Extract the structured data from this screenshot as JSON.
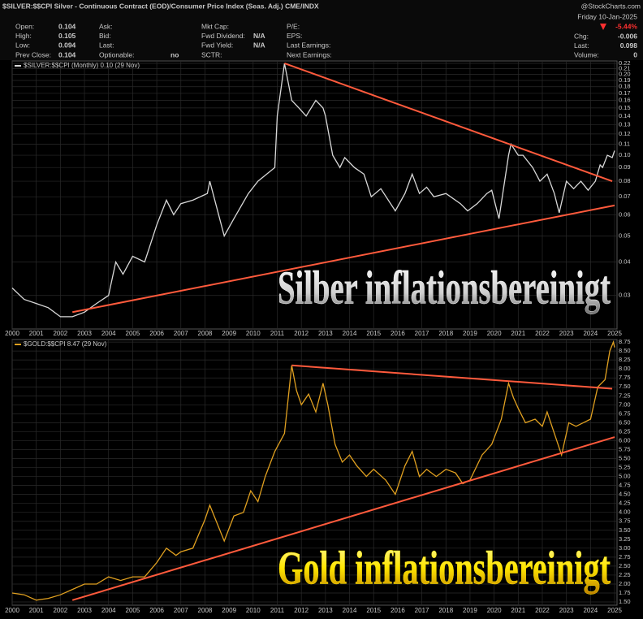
{
  "header": {
    "title": "$SILVER:$$CPI Silver - Continuous Contract (EOD)/Consumer Price Index (Seas. Adj.) CME/INDX",
    "brand": "@StockCharts.com",
    "date": "Friday 10-Jan-2025",
    "change": "-5.44%",
    "quote": [
      [
        {
          "label": "Open:",
          "value": "0.104"
        },
        {
          "label": "High:",
          "value": "0.105"
        },
        {
          "label": "Low:",
          "value": "0.094"
        },
        {
          "label": "Prev Close:",
          "value": "0.104"
        }
      ],
      [
        {
          "label": "Ask:"
        },
        {
          "label": "Bid:"
        },
        {
          "label": "Last:"
        },
        {
          "label": "Optionable:",
          "value": "no"
        }
      ],
      [
        {
          "label": "Mkt Cap:"
        },
        {
          "label": "Fwd Dividend:",
          "value": "N/A"
        },
        {
          "label": "Fwd Yield:",
          "value": "N/A"
        },
        {
          "label": "SCTR:"
        }
      ],
      [
        {
          "label": "P/E:"
        },
        {
          "label": "EPS:"
        },
        {
          "label": "Last Earnings:"
        },
        {
          "label": "Next Earnings:"
        }
      ]
    ],
    "right": [
      {
        "label": "Chg:",
        "value": "-0.006"
      },
      {
        "label": "Last:",
        "value": "0.098"
      },
      {
        "label": "Volume:",
        "value": "0"
      }
    ]
  },
  "chart_data": [
    {
      "type": "line",
      "annotation": "Silber inflationsbereinigt",
      "annotation_color": "#ffffff",
      "log_scale": true,
      "grid": true,
      "xlim": [
        2000,
        2025.1
      ],
      "xticks": [
        2000,
        2001,
        2002,
        2003,
        2004,
        2005,
        2006,
        2007,
        2008,
        2009,
        2010,
        2011,
        2012,
        2013,
        2014,
        2015,
        2016,
        2017,
        2018,
        2019,
        2020,
        2021,
        2022,
        2023,
        2024,
        2025
      ],
      "ylim": [
        0.0225,
        0.2246
      ],
      "yticks": [
        0.03,
        0.04,
        0.05,
        0.06,
        0.07,
        0.08,
        0.09,
        {
          "value": 0.1,
          "label": "0.10"
        },
        0.11,
        0.12,
        0.13,
        0.14,
        0.15,
        0.16,
        0.17,
        0.18,
        0.19,
        {
          "value": 0.2,
          "label": "0.20"
        },
        0.21,
        0.22
      ],
      "x": [
        2000,
        2000.5,
        2001,
        2001.5,
        2002,
        2002.5,
        2003,
        2003.5,
        2004,
        2004.3,
        2004.6,
        2005,
        2005.5,
        2006,
        2006.4,
        2006.7,
        2007,
        2007.5,
        2008.1,
        2008.2,
        2008.8,
        2009.2,
        2009.8,
        2010.2,
        2010.9,
        2011.0,
        2011.3,
        2011.6,
        2011.9,
        2012.2,
        2012.6,
        2012.9,
        2013.0,
        2013.3,
        2013.6,
        2013.8,
        2014.2,
        2014.6,
        2014.9,
        2015.3,
        2015.9,
        2016.3,
        2016.6,
        2016.9,
        2017.2,
        2017.5,
        2018.0,
        2018.6,
        2018.9,
        2019.3,
        2019.7,
        2019.9,
        2020.2,
        2020.6,
        2020.7,
        2021.0,
        2021.2,
        2021.6,
        2021.9,
        2022.2,
        2022.5,
        2022.7,
        2023.0,
        2023.3,
        2023.6,
        2023.9,
        2024.2,
        2024.4,
        2024.5,
        2024.7,
        2024.9,
        2025.0
      ],
      "series": [
        {
          "name": "$SILVER:$$CPI (Monthly) 0.10 (29 Nov)",
          "color": "#d8d8d8",
          "values": [
            0.032,
            0.029,
            0.028,
            0.027,
            0.025,
            0.025,
            0.026,
            0.028,
            0.03,
            0.04,
            0.036,
            0.042,
            0.04,
            0.055,
            0.068,
            0.06,
            0.066,
            0.068,
            0.072,
            0.08,
            0.05,
            0.058,
            0.072,
            0.08,
            0.09,
            0.14,
            0.22,
            0.16,
            0.15,
            0.14,
            0.16,
            0.15,
            0.14,
            0.1,
            0.09,
            0.098,
            0.09,
            0.085,
            0.07,
            0.075,
            0.062,
            0.072,
            0.085,
            0.072,
            0.076,
            0.07,
            0.072,
            0.066,
            0.062,
            0.066,
            0.072,
            0.074,
            0.058,
            0.1,
            0.11,
            0.1,
            0.1,
            0.09,
            0.08,
            0.085,
            0.072,
            0.061,
            0.08,
            0.075,
            0.08,
            0.074,
            0.08,
            0.092,
            0.09,
            0.1,
            0.098,
            0.104
          ]
        }
      ],
      "trendlines": [
        {
          "color": "#ff5a3c",
          "x": [
            2011.3,
            2024.9
          ],
          "values": [
            0.22,
            0.08
          ]
        },
        {
          "color": "#ff5a3c",
          "x": [
            2002.5,
            2025.0
          ],
          "values": [
            0.026,
            0.065
          ]
        }
      ]
    },
    {
      "type": "line",
      "annotation": "Gold inflationsbereinigt",
      "annotation_color": "#ffe600",
      "log_scale": false,
      "grid": true,
      "xlim": [
        2000,
        2025.1
      ],
      "xticks": [
        2000,
        2001,
        2002,
        2003,
        2004,
        2005,
        2006,
        2007,
        2008,
        2009,
        2010,
        2011,
        2012,
        2013,
        2014,
        2015,
        2016,
        2017,
        2018,
        2019,
        2020,
        2021,
        2022,
        2023,
        2024,
        2025
      ],
      "ylim": [
        1.41,
        8.82
      ],
      "yticks": [
        {
          "value": 1.5,
          "label": "1.50"
        },
        1.75,
        {
          "value": 2,
          "label": "2.00"
        },
        2.25,
        {
          "value": 2.5,
          "label": "2.50"
        },
        2.75,
        {
          "value": 3,
          "label": "3.00"
        },
        3.25,
        {
          "value": 3.5,
          "label": "3.50"
        },
        3.75,
        {
          "value": 4,
          "label": "4.00"
        },
        4.25,
        {
          "value": 4.5,
          "label": "4.50"
        },
        4.75,
        {
          "value": 5,
          "label": "5.00"
        },
        5.25,
        {
          "value": 5.5,
          "label": "5.50"
        },
        5.75,
        {
          "value": 6,
          "label": "6.00"
        },
        6.25,
        {
          "value": 6.5,
          "label": "6.50"
        },
        6.75,
        {
          "value": 7,
          "label": "7.00"
        },
        7.25,
        {
          "value": 7.5,
          "label": "7.50"
        },
        7.75,
        {
          "value": 8,
          "label": "8.00"
        },
        8.25,
        {
          "value": 8.5,
          "label": "8.50"
        },
        8.75
      ],
      "x": [
        2000,
        2000.5,
        2001,
        2001.5,
        2002,
        2002.5,
        2003,
        2003.5,
        2004,
        2004.5,
        2005,
        2005.5,
        2006,
        2006.4,
        2006.8,
        2007,
        2007.5,
        2008,
        2008.2,
        2008.8,
        2009.2,
        2009.6,
        2009.9,
        2010.2,
        2010.5,
        2010.9,
        2011.3,
        2011.6,
        2011.8,
        2012.0,
        2012.3,
        2012.6,
        2012.9,
        2013.1,
        2013.4,
        2013.7,
        2014.0,
        2014.3,
        2014.7,
        2015.0,
        2015.5,
        2015.9,
        2016.3,
        2016.6,
        2016.9,
        2017.2,
        2017.6,
        2018.0,
        2018.4,
        2018.7,
        2019.0,
        2019.5,
        2019.9,
        2020.3,
        2020.6,
        2020.8,
        2021.0,
        2021.3,
        2021.7,
        2022.0,
        2022.2,
        2022.6,
        2022.8,
        2023.1,
        2023.4,
        2023.7,
        2024.0,
        2024.3,
        2024.6,
        2024.8,
        2024.95,
        2025.0
      ],
      "series": [
        {
          "name": "$GOLD:$$CPI 8.47 (29 Nov)",
          "color": "#e0a020",
          "values": [
            1.75,
            1.7,
            1.55,
            1.6,
            1.7,
            1.85,
            2.0,
            2.0,
            2.2,
            2.1,
            2.2,
            2.2,
            2.6,
            3.0,
            2.8,
            2.9,
            3.0,
            3.8,
            4.2,
            3.2,
            3.9,
            4.0,
            4.6,
            4.3,
            5.0,
            5.7,
            6.2,
            8.1,
            7.4,
            7.0,
            7.3,
            6.8,
            7.6,
            7.0,
            5.9,
            5.4,
            5.6,
            5.3,
            5.0,
            5.2,
            4.9,
            4.5,
            5.3,
            5.7,
            5.0,
            5.2,
            5.0,
            5.2,
            5.1,
            4.8,
            4.9,
            5.6,
            5.9,
            6.6,
            7.6,
            7.2,
            6.9,
            6.5,
            6.6,
            6.4,
            6.8,
            6.0,
            5.6,
            6.5,
            6.4,
            6.5,
            6.6,
            7.5,
            7.7,
            8.5,
            8.75,
            8.6
          ]
        }
      ],
      "trendlines": [
        {
          "color": "#ff5a3c",
          "x": [
            2011.6,
            2024.9
          ],
          "values": [
            8.1,
            7.45
          ]
        },
        {
          "color": "#ff5a3c",
          "x": [
            2002.5,
            2025.0
          ],
          "values": [
            1.55,
            6.1
          ]
        }
      ]
    }
  ]
}
